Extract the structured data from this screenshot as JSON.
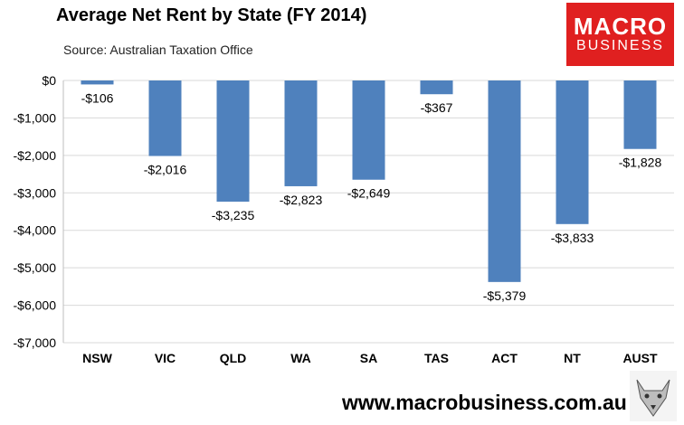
{
  "header": {
    "title": "Average Net Rent by State (FY 2014)",
    "subtitle": "Source: Australian Taxation Office"
  },
  "logo": {
    "line1": "MACRO",
    "line2": "BUSINESS",
    "icon": "wolf-logo-icon"
  },
  "footer": {
    "url": "www.macrobusiness.com.au"
  },
  "colors": {
    "bar": "#4f81bd",
    "grid": "#d9d9d9",
    "brand": "#e02020"
  },
  "chart_data": {
    "type": "bar",
    "title": "Average Net Rent by State (FY 2014)",
    "subtitle": "Source: Australian Taxation Office",
    "categories": [
      "NSW",
      "VIC",
      "QLD",
      "WA",
      "SA",
      "TAS",
      "ACT",
      "NT",
      "AUST"
    ],
    "values": [
      -106,
      -2016,
      -3235,
      -2823,
      -2649,
      -367,
      -5379,
      -3833,
      -1828
    ],
    "data_labels": [
      "-$106",
      "-$2,016",
      "-$3,235",
      "-$2,823",
      "-$2,649",
      "-$367",
      "-$5,379",
      "-$3,833",
      "-$1,828"
    ],
    "y_ticks": [
      0,
      -1000,
      -2000,
      -3000,
      -4000,
      -5000,
      -6000,
      -7000
    ],
    "y_tick_labels": [
      "$0",
      "-$1,000",
      "-$2,000",
      "-$3,000",
      "-$4,000",
      "-$5,000",
      "-$6,000",
      "-$7,000"
    ],
    "ylim": [
      -7000,
      0
    ],
    "grid": true,
    "legend": "none"
  }
}
